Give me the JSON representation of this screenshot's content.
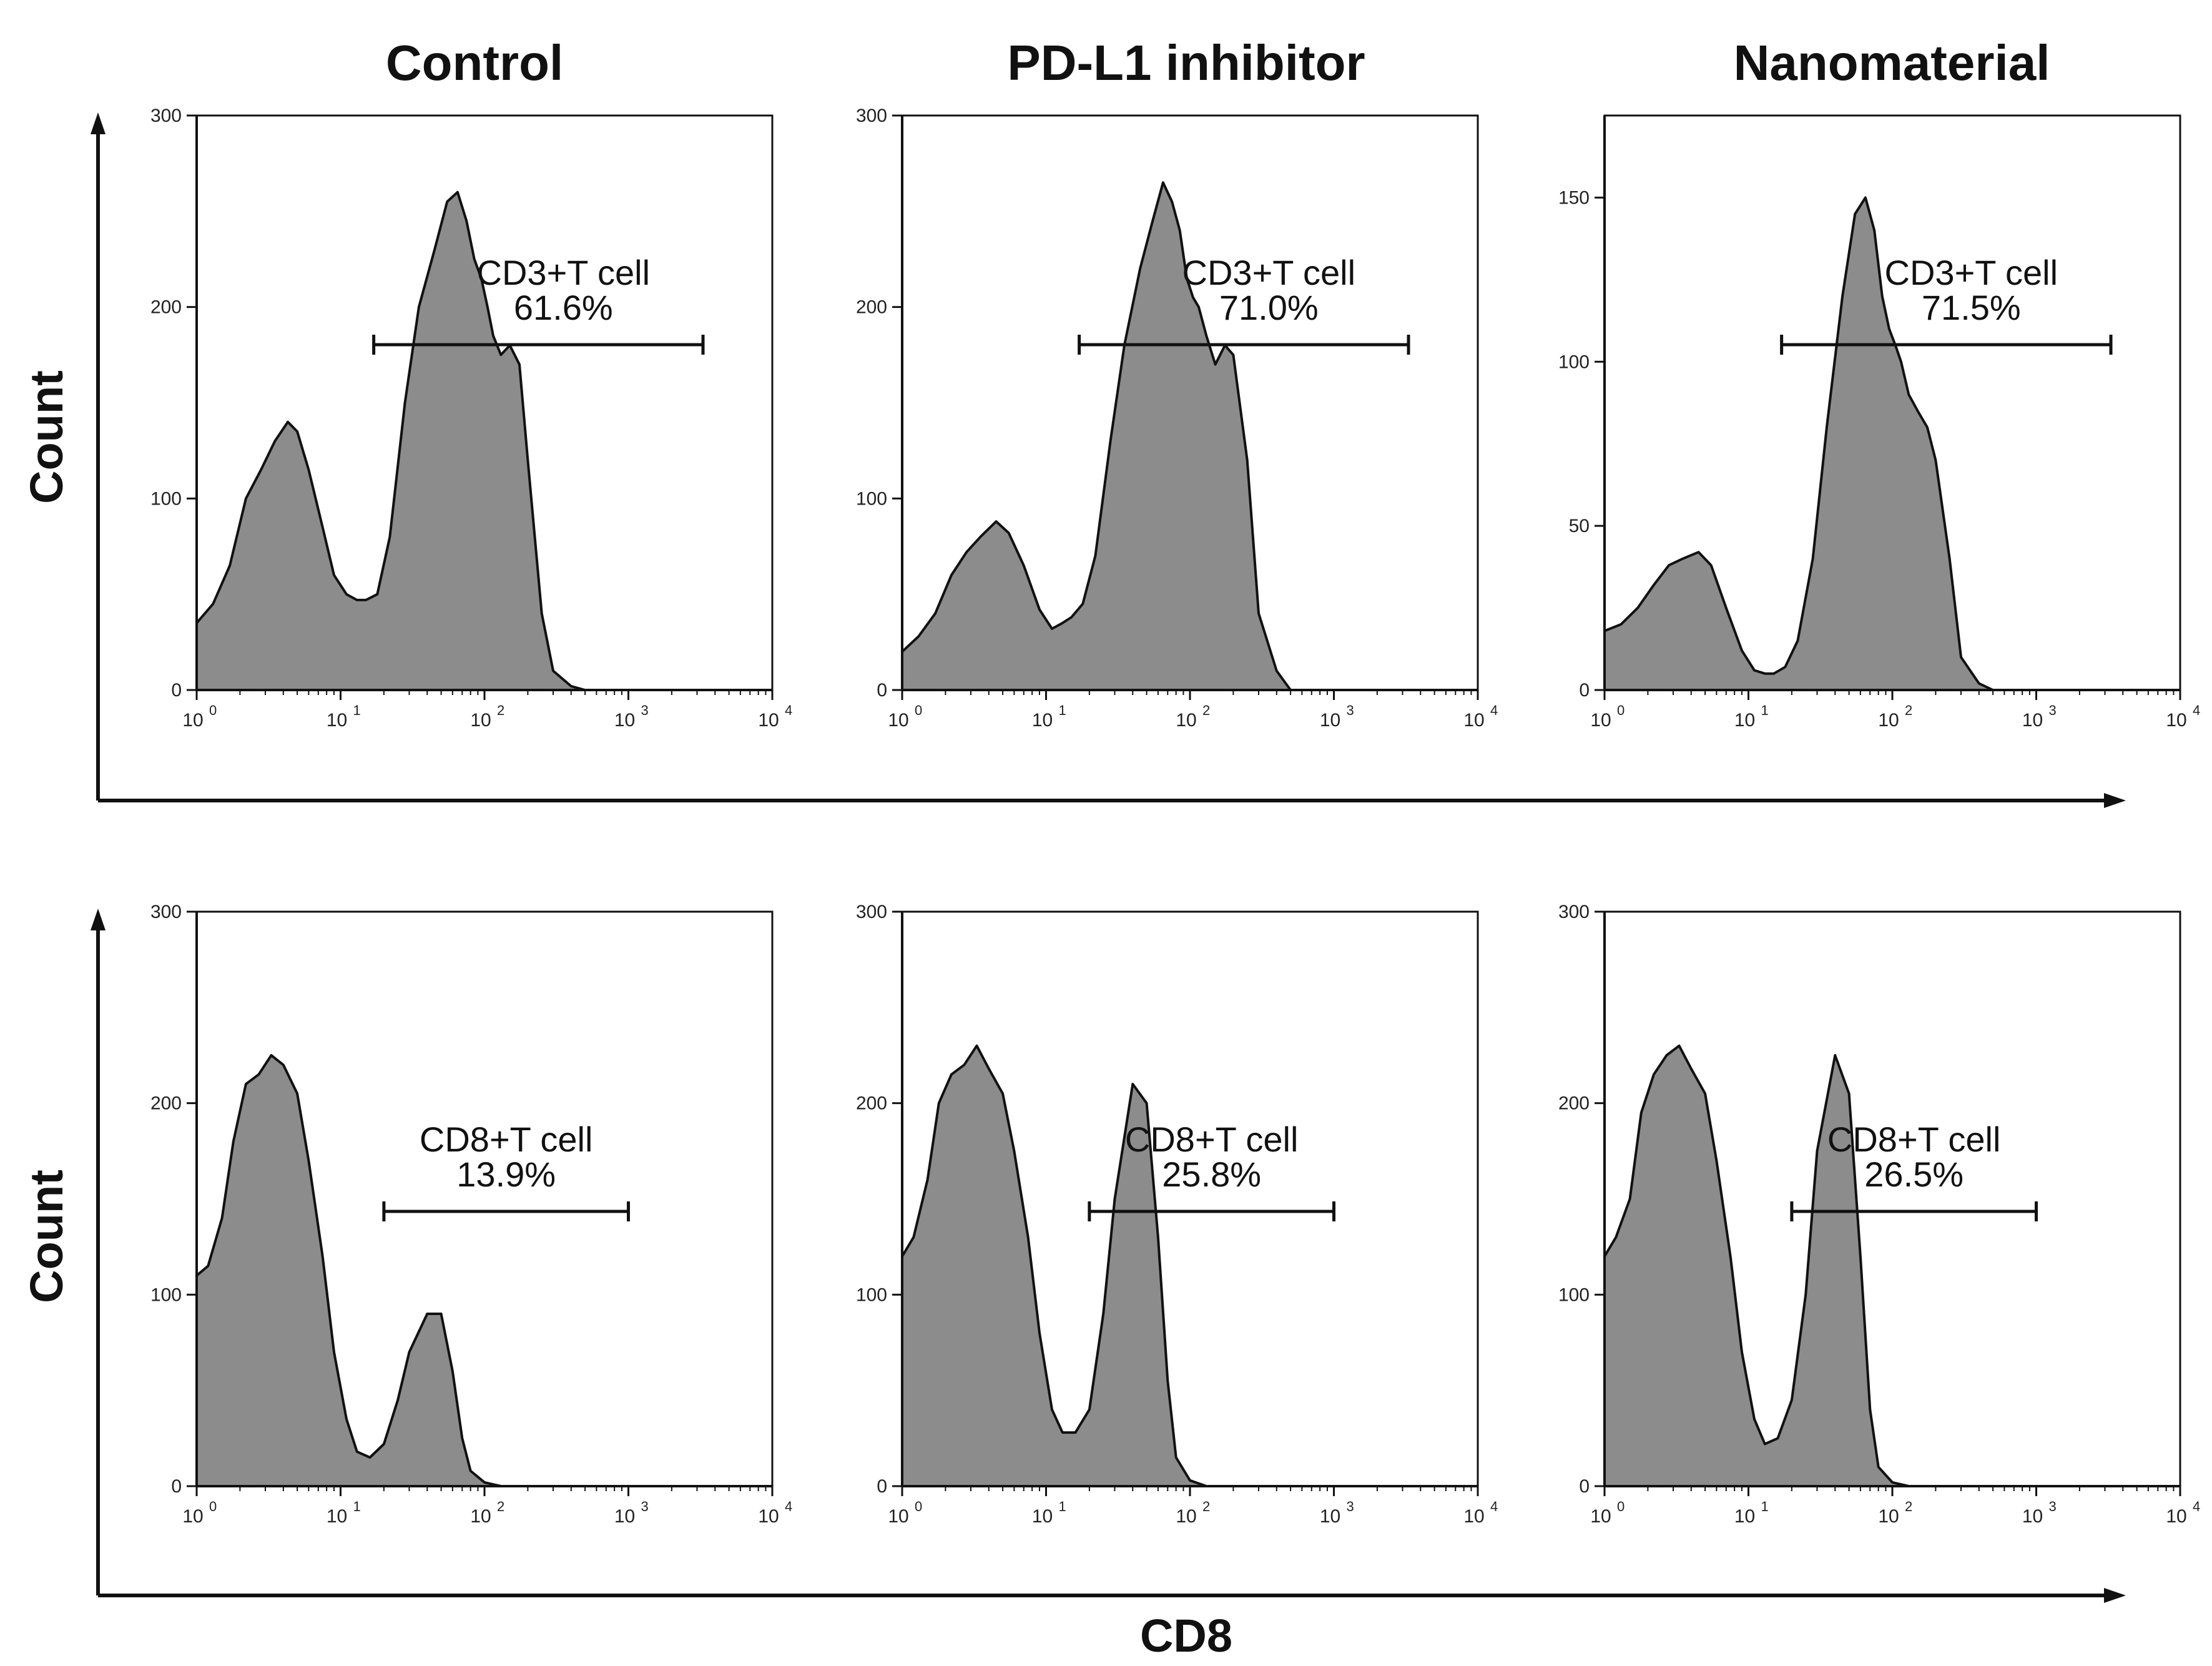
{
  "figure": {
    "col_titles": [
      "Control",
      "PD-L1 inhibitor",
      "Nanomaterial"
    ],
    "y_label": "Count",
    "x_label": "CD8"
  },
  "style": {
    "fill": "#8c8c8c",
    "stroke": "#111111",
    "axis": "#111111"
  },
  "chart_data": [
    {
      "type": "area",
      "id": "control-cd3",
      "row": 0,
      "col": 0,
      "xscale": "log",
      "xlim": [
        1,
        10000
      ],
      "ylim": [
        0,
        300
      ],
      "yticks": [
        0,
        100,
        200,
        300
      ],
      "xticks": [
        {
          "base": "10",
          "exp": "0"
        },
        {
          "base": "10",
          "exp": "1"
        },
        {
          "base": "10",
          "exp": "2"
        },
        {
          "base": "10",
          "exp": "3"
        },
        {
          "base": "10",
          "exp": "4"
        }
      ],
      "series": [
        {
          "name": "CD3",
          "x": [
            1,
            1.3,
            1.7,
            2.2,
            2.8,
            3.5,
            4.3,
            5,
            6,
            7.5,
            9,
            11,
            13,
            15,
            18,
            22,
            28,
            35,
            45,
            55,
            65,
            75,
            85,
            95,
            105,
            115,
            130,
            150,
            175,
            200,
            250,
            300,
            400,
            500
          ],
          "y": [
            35,
            45,
            65,
            100,
            115,
            130,
            140,
            135,
            115,
            85,
            60,
            50,
            47,
            47,
            50,
            80,
            150,
            200,
            230,
            255,
            260,
            245,
            225,
            215,
            200,
            185,
            175,
            180,
            170,
            120,
            40,
            10,
            2,
            0
          ]
        }
      ],
      "gate": {
        "range": [
          17,
          3300
        ],
        "label": "CD3+T cell",
        "value": "61.6%"
      }
    },
    {
      "type": "area",
      "id": "pdl1-cd3",
      "row": 0,
      "col": 1,
      "xscale": "log",
      "xlim": [
        1,
        10000
      ],
      "ylim": [
        0,
        300
      ],
      "yticks": [
        0,
        100,
        200,
        300
      ],
      "xticks": [
        {
          "base": "10",
          "exp": "0"
        },
        {
          "base": "10",
          "exp": "1"
        },
        {
          "base": "10",
          "exp": "2"
        },
        {
          "base": "10",
          "exp": "3"
        },
        {
          "base": "10",
          "exp": "4"
        }
      ],
      "series": [
        {
          "name": "CD3",
          "x": [
            1,
            1.3,
            1.7,
            2.2,
            2.8,
            3.5,
            4.5,
            5.5,
            7,
            9,
            11,
            13,
            15,
            18,
            22,
            28,
            35,
            45,
            55,
            65,
            75,
            85,
            95,
            105,
            115,
            130,
            150,
            175,
            200,
            250,
            300,
            400,
            500
          ],
          "y": [
            20,
            28,
            40,
            60,
            72,
            80,
            88,
            82,
            65,
            42,
            32,
            35,
            38,
            45,
            70,
            130,
            180,
            220,
            245,
            265,
            255,
            240,
            215,
            205,
            200,
            185,
            170,
            180,
            175,
            120,
            40,
            10,
            0
          ]
        }
      ],
      "gate": {
        "range": [
          17,
          3300
        ],
        "label": "CD3+T cell",
        "value": "71.0%"
      }
    },
    {
      "type": "area",
      "id": "nano-cd3",
      "row": 0,
      "col": 2,
      "xscale": "log",
      "xlim": [
        1,
        10000
      ],
      "ylim": [
        0,
        175
      ],
      "yticks": [
        0,
        50,
        100,
        150
      ],
      "xticks": [
        {
          "base": "10",
          "exp": "0"
        },
        {
          "base": "10",
          "exp": "1"
        },
        {
          "base": "10",
          "exp": "2"
        },
        {
          "base": "10",
          "exp": "3"
        },
        {
          "base": "10",
          "exp": "4"
        }
      ],
      "series": [
        {
          "name": "CD3",
          "x": [
            1,
            1.3,
            1.7,
            2.2,
            2.8,
            3.5,
            4.5,
            5.5,
            7,
            9,
            11,
            13,
            15,
            18,
            22,
            28,
            35,
            45,
            55,
            65,
            75,
            85,
            95,
            105,
            115,
            130,
            150,
            175,
            200,
            250,
            300,
            400,
            500
          ],
          "y": [
            18,
            20,
            25,
            32,
            38,
            40,
            42,
            38,
            25,
            12,
            6,
            5,
            5,
            7,
            15,
            40,
            80,
            120,
            145,
            150,
            140,
            120,
            110,
            105,
            100,
            90,
            85,
            80,
            70,
            40,
            10,
            2,
            0
          ]
        }
      ],
      "gate": {
        "range": [
          17,
          3300
        ],
        "label": "CD3+T cell",
        "value": "71.5%"
      }
    },
    {
      "type": "area",
      "id": "control-cd8",
      "row": 1,
      "col": 0,
      "xscale": "log",
      "xlim": [
        1,
        10000
      ],
      "ylim": [
        0,
        300
      ],
      "yticks": [
        0,
        100,
        200,
        300
      ],
      "xticks": [
        {
          "base": "10",
          "exp": "0"
        },
        {
          "base": "10",
          "exp": "1"
        },
        {
          "base": "10",
          "exp": "2"
        },
        {
          "base": "10",
          "exp": "3"
        },
        {
          "base": "10",
          "exp": "4"
        }
      ],
      "series": [
        {
          "name": "CD8",
          "x": [
            1,
            1.2,
            1.5,
            1.8,
            2.2,
            2.7,
            3.3,
            4,
            5,
            6,
            7.5,
            9,
            11,
            13,
            16,
            20,
            25,
            30,
            40,
            50,
            60,
            70,
            80,
            100,
            130
          ],
          "y": [
            110,
            115,
            140,
            180,
            210,
            215,
            225,
            220,
            205,
            170,
            120,
            70,
            35,
            18,
            15,
            22,
            45,
            70,
            90,
            90,
            60,
            25,
            8,
            2,
            0
          ]
        }
      ],
      "gate": {
        "range": [
          20,
          1000
        ],
        "label": "CD8+T cell",
        "value": "13.9%"
      }
    },
    {
      "type": "area",
      "id": "pdl1-cd8",
      "row": 1,
      "col": 1,
      "xscale": "log",
      "xlim": [
        1,
        10000
      ],
      "ylim": [
        0,
        300
      ],
      "yticks": [
        0,
        100,
        200,
        300
      ],
      "xticks": [
        {
          "base": "10",
          "exp": "0"
        },
        {
          "base": "10",
          "exp": "1"
        },
        {
          "base": "10",
          "exp": "2"
        },
        {
          "base": "10",
          "exp": "3"
        },
        {
          "base": "10",
          "exp": "4"
        }
      ],
      "series": [
        {
          "name": "CD8",
          "x": [
            1,
            1.2,
            1.5,
            1.8,
            2.2,
            2.7,
            3.3,
            4,
            5,
            6,
            7.5,
            9,
            11,
            13,
            16,
            20,
            25,
            30,
            40,
            50,
            60,
            70,
            80,
            100,
            130
          ],
          "y": [
            120,
            130,
            160,
            200,
            215,
            220,
            230,
            218,
            205,
            175,
            130,
            80,
            40,
            28,
            28,
            40,
            90,
            150,
            210,
            200,
            130,
            55,
            15,
            3,
            0
          ]
        }
      ],
      "gate": {
        "range": [
          20,
          1000
        ],
        "label": "CD8+T cell",
        "value": "25.8%"
      }
    },
    {
      "type": "area",
      "id": "nano-cd8",
      "row": 1,
      "col": 2,
      "xscale": "log",
      "xlim": [
        1,
        10000
      ],
      "ylim": [
        0,
        300
      ],
      "yticks": [
        0,
        100,
        200,
        300
      ],
      "xticks": [
        {
          "base": "10",
          "exp": "0"
        },
        {
          "base": "10",
          "exp": "1"
        },
        {
          "base": "10",
          "exp": "2"
        },
        {
          "base": "10",
          "exp": "3"
        },
        {
          "base": "10",
          "exp": "4"
        }
      ],
      "series": [
        {
          "name": "CD8",
          "x": [
            1,
            1.2,
            1.5,
            1.8,
            2.2,
            2.7,
            3.3,
            4,
            5,
            6,
            7.5,
            9,
            11,
            13,
            16,
            20,
            25,
            30,
            40,
            50,
            60,
            70,
            80,
            100,
            130
          ],
          "y": [
            120,
            130,
            150,
            195,
            215,
            225,
            230,
            218,
            205,
            170,
            120,
            70,
            35,
            22,
            25,
            45,
            100,
            175,
            225,
            205,
            120,
            40,
            10,
            2,
            0
          ]
        }
      ],
      "gate": {
        "range": [
          20,
          1000
        ],
        "label": "CD8+T cell",
        "value": "26.5%"
      }
    }
  ]
}
